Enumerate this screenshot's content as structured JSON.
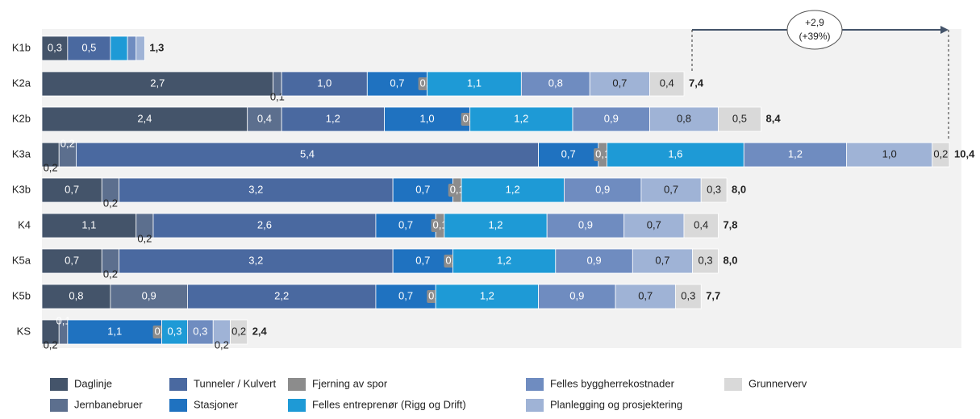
{
  "chart_data": {
    "type": "stacked-bar-horizontal",
    "categories": [
      "K1b",
      "K2a",
      "K2b",
      "K3a",
      "K3b",
      "K4",
      "K5a",
      "K5b",
      "KS"
    ],
    "series": [
      {
        "name": "Daglinje",
        "color": "#44546a",
        "values": [
          0.3,
          2.7,
          2.4,
          0.2,
          0.7,
          1.1,
          0.7,
          0.8,
          0.2
        ],
        "value_labels": [
          "0,3",
          "2,7",
          "2,4",
          "0,2",
          "0,7",
          "1,1",
          "0,7",
          "0,8",
          "0,2"
        ]
      },
      {
        "name": "Jernbanebruer",
        "color": "#5c6f8e",
        "values": [
          null,
          0.1,
          0.4,
          0.2,
          0.2,
          0.2,
          0.2,
          0.9,
          0.1
        ],
        "value_labels": [
          null,
          "0,1",
          "0,4",
          "0,2",
          "0,2",
          "0,2",
          "0,2",
          "0,9",
          "0,1"
        ]
      },
      {
        "name": "Tunneler / Kulvert",
        "color": "#4a69a0",
        "values": [
          0.5,
          1.0,
          1.2,
          5.4,
          3.2,
          2.6,
          3.2,
          2.2,
          null
        ],
        "value_labels": [
          "0,5",
          "1,0",
          "1,2",
          "5,4",
          "3,2",
          "2,6",
          "3,2",
          "2,2",
          null
        ]
      },
      {
        "name": "Stasjoner",
        "color": "#1f72c0",
        "values": [
          null,
          0.7,
          1.0,
          0.7,
          0.7,
          0.7,
          0.7,
          0.7,
          1.1
        ],
        "value_labels": [
          null,
          "0,7",
          "1,0",
          "0,7",
          "0,7",
          "0,7",
          "0,7",
          "0,7",
          "1,1"
        ]
      },
      {
        "name": "Fjerning av spor",
        "color": "#8c8c8c",
        "values": [
          null,
          0.0,
          0.0,
          0.1,
          0.1,
          0.1,
          0.0,
          0.0,
          0.0
        ],
        "value_labels": [
          null,
          "0,0",
          "0,0",
          "0,1",
          "0,1",
          "0,1",
          "0,0",
          "0,0",
          "0,0"
        ]
      },
      {
        "name": "Felles entreprenør (Rigg og Drift)",
        "color": "#1e9ad6",
        "values": [
          0.2,
          1.1,
          1.2,
          1.6,
          1.2,
          1.2,
          1.2,
          1.2,
          0.3
        ],
        "value_labels": [
          null,
          "1,1",
          "1,2",
          "1,6",
          "1,2",
          "1,2",
          "1,2",
          "1,2",
          "0,3"
        ]
      },
      {
        "name": "Felles byggherrekostnader",
        "color": "#6f8cc0",
        "values": [
          0.1,
          0.8,
          0.9,
          1.2,
          0.9,
          0.9,
          0.9,
          0.9,
          0.3
        ],
        "value_labels": [
          null,
          "0,8",
          "0,9",
          "1,2",
          "0,9",
          "0,9",
          "0,9",
          "0,9",
          "0,3"
        ]
      },
      {
        "name": "Planlegging og prosjektering",
        "color": "#9fb3d6",
        "values": [
          0.1,
          0.7,
          0.8,
          1.0,
          0.7,
          0.7,
          0.7,
          0.7,
          0.2
        ],
        "value_labels": [
          null,
          "0,7",
          "0,8",
          "1,0",
          "0,7",
          "0,7",
          "0,7",
          "0,7",
          "0,2"
        ]
      },
      {
        "name": "Grunnerverv",
        "color": "#d9d9d9",
        "values": [
          null,
          0.4,
          0.5,
          0.2,
          0.3,
          0.4,
          0.3,
          0.3,
          0.2
        ],
        "value_labels": [
          null,
          "0,4",
          "0,5",
          "0,2",
          "0,3",
          "0,4",
          "0,3",
          "0,3",
          "0,2"
        ]
      }
    ],
    "total_labels": [
      "1,3",
      "7,4",
      "8,4",
      "10,4",
      "8,0",
      "7,8",
      "8,0",
      "7,7",
      "2,4"
    ],
    "annotation": [
      "+2,9",
      "(+39%)"
    ]
  }
}
